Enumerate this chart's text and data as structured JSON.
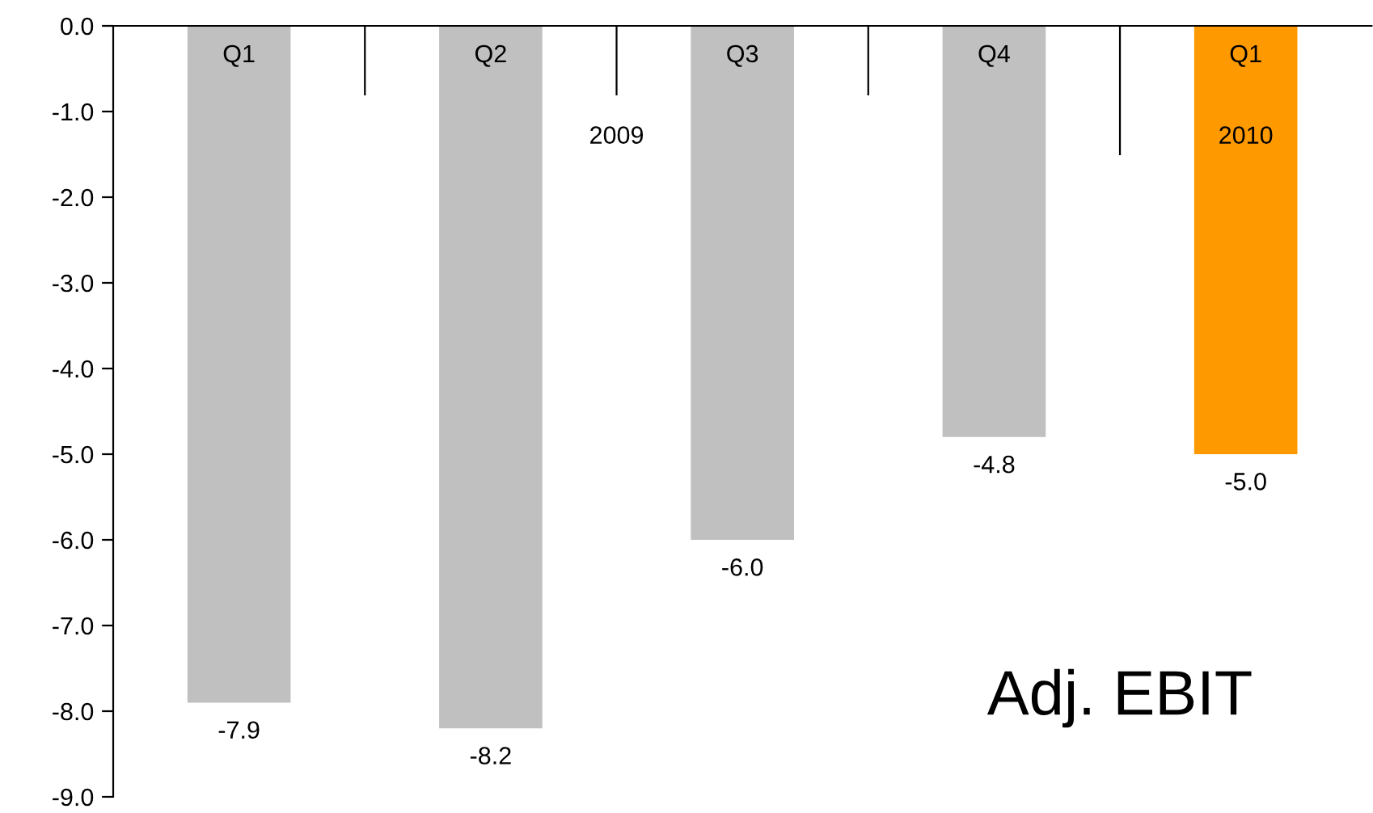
{
  "chart_data": {
    "type": "bar",
    "title": "Adj. EBIT",
    "categories": [
      "Q1",
      "Q2",
      "Q3",
      "Q4",
      "Q1"
    ],
    "values": [
      -7.9,
      -8.2,
      -6.0,
      -4.8,
      -5.0
    ],
    "colors": [
      "#c0c0c0",
      "#c0c0c0",
      "#c0c0c0",
      "#c0c0c0",
      "#ff9900"
    ],
    "annotations": [
      "2009",
      "2010"
    ],
    "ylim": [
      -9,
      0
    ],
    "yticks": [
      {
        "value": -9,
        "label": "-9.0"
      },
      {
        "value": -8,
        "label": "-8.0"
      },
      {
        "value": -7,
        "label": "-7.0"
      },
      {
        "value": -6,
        "label": "-6.0"
      },
      {
        "value": -5,
        "label": "-5.0"
      },
      {
        "value": -4,
        "label": "-4.0"
      },
      {
        "value": -3,
        "label": "-3.0"
      },
      {
        "value": -2,
        "label": "-2.0"
      },
      {
        "value": -1,
        "label": "-1.0"
      },
      {
        "value": 0,
        "label": "0.0"
      }
    ],
    "value_labels": [
      "-7.9",
      "-8.2",
      "-6.0",
      "-4.8",
      "-5.0"
    ],
    "grid": false,
    "legend": false
  }
}
